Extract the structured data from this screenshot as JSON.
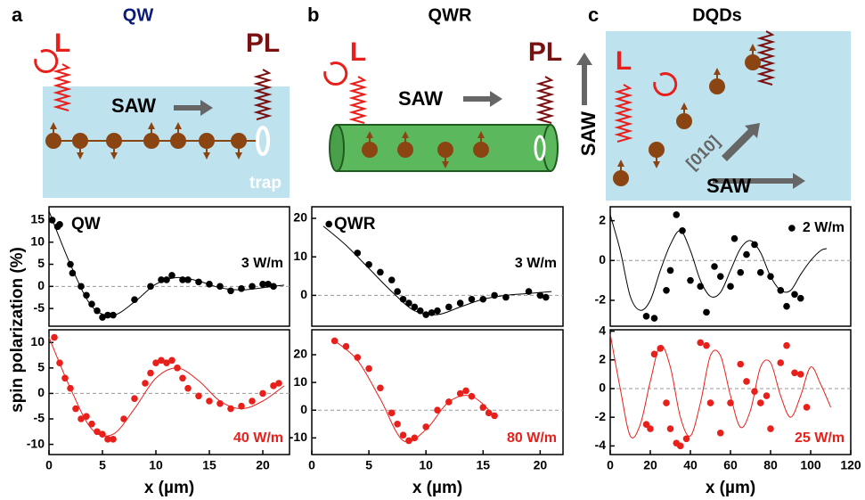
{
  "schematics": [
    {
      "letter": "a",
      "title": "QW",
      "texts": [
        "L",
        "PL",
        "SAW",
        "trap"
      ]
    },
    {
      "letter": "b",
      "title": "QWR",
      "texts": [
        "L",
        "PL",
        "SAW"
      ]
    },
    {
      "letter": "c",
      "title": "DQDs",
      "texts": [
        "L",
        "SAW",
        "[010]",
        "SAW"
      ]
    }
  ],
  "axis_label": "spin polarization (%)",
  "chart_data": [
    {
      "type": "scatter",
      "labels": [
        "QW",
        "3 W/m"
      ],
      "color": "#000000",
      "zero_line": true,
      "x": [
        0.3,
        0.8,
        1,
        2,
        2.2,
        3,
        3.5,
        4,
        4.5,
        5,
        5.5,
        6,
        8,
        9.5,
        10.5,
        11,
        11.5,
        12.5,
        13,
        14,
        15,
        16,
        17,
        18,
        19,
        20,
        20.5,
        21
      ],
      "values": [
        15,
        13.5,
        14,
        5,
        3,
        0,
        -2,
        -4,
        -5.5,
        -7,
        -6.5,
        -6.5,
        -3,
        0,
        1.5,
        1.5,
        2.5,
        1.5,
        1.5,
        1,
        0.5,
        0,
        -1,
        -0.5,
        0,
        0.5,
        0.5,
        0
      ],
      "fit": {
        "x": [
          0,
          2,
          4,
          6,
          8,
          10,
          12,
          14,
          16,
          18,
          20,
          22
        ],
        "values": [
          17,
          5,
          -4.5,
          -6.5,
          -3.5,
          0.5,
          2,
          1.2,
          -0.3,
          -0.8,
          -0.3,
          0.3
        ]
      },
      "xlim": [
        0,
        22.5
      ],
      "ylim": [
        -9,
        18
      ],
      "yticks": [
        -5,
        0,
        5,
        10,
        15
      ]
    },
    {
      "type": "scatter",
      "labels": [
        "40 W/m"
      ],
      "color": "#e8201c",
      "zero_line": true,
      "x": [
        0.5,
        1,
        1.5,
        2,
        2.5,
        3,
        3.5,
        4,
        4.5,
        5,
        5.5,
        6,
        7,
        8,
        9,
        9.5,
        10,
        10.5,
        11,
        11.5,
        12,
        12.5,
        13,
        14,
        15,
        16,
        17,
        18,
        19,
        20,
        21,
        21.5
      ],
      "values": [
        11,
        6,
        3,
        1,
        -3,
        -5,
        -4.5,
        -6,
        -7.5,
        -8,
        -9,
        -9,
        -5,
        -1,
        2,
        4,
        6,
        6.5,
        6,
        6.5,
        5,
        3,
        1,
        -0.5,
        -1.5,
        -2,
        -3,
        -2.5,
        -1.5,
        0,
        1.5,
        2
      ],
      "fit": {
        "x": [
          0,
          2,
          4,
          6,
          8,
          10,
          12,
          14,
          16,
          18,
          20,
          22
        ],
        "values": [
          11,
          1,
          -7,
          -8,
          -3,
          3,
          5,
          2.5,
          -1.5,
          -3,
          -1.5,
          1.5
        ]
      },
      "xlim": [
        0,
        22.5
      ],
      "ylim": [
        -12,
        12.5
      ],
      "yticks": [
        -10,
        -5,
        0,
        5,
        10
      ],
      "xticks": [
        0,
        5,
        10,
        15,
        20
      ],
      "xlabel": "x (µm)"
    },
    {
      "type": "scatter",
      "labels": [
        "QWR",
        "3 W/m"
      ],
      "color": "#000000",
      "zero_line": true,
      "x": [
        1.5,
        4,
        5,
        6,
        7,
        7.5,
        8,
        8.5,
        9,
        9.5,
        10,
        10.5,
        11,
        12,
        13,
        14,
        15,
        16,
        17,
        19,
        20,
        20.5
      ],
      "values": [
        18.5,
        11,
        8,
        6,
        4,
        1,
        -1,
        -2,
        -3,
        -4,
        -5,
        -4.5,
        -4,
        -3,
        -2,
        -1,
        -1,
        0,
        -0.5,
        1,
        0,
        -0.5
      ],
      "fit": {
        "x": [
          1,
          3,
          5,
          7,
          9,
          11,
          13,
          15,
          17,
          19,
          21
        ],
        "values": [
          18,
          13,
          7,
          1,
          -4,
          -5,
          -3,
          -1,
          0,
          0.5,
          1
        ]
      },
      "xlim": [
        0,
        22
      ],
      "ylim": [
        -8,
        23
      ],
      "yticks": [
        0,
        10,
        20
      ]
    },
    {
      "type": "scatter",
      "labels": [
        "80 W/m"
      ],
      "color": "#e8201c",
      "zero_line": true,
      "x": [
        2,
        3,
        4,
        5,
        6,
        7,
        7.5,
        8,
        8.5,
        9,
        10,
        11,
        12,
        13,
        13.5,
        14,
        15,
        15.5,
        16
      ],
      "values": [
        25,
        23,
        19,
        15,
        8,
        -1,
        -5,
        -9,
        -11,
        -10,
        -6,
        0,
        3,
        6,
        7,
        5,
        1,
        -1,
        -2
      ],
      "fit": {
        "x": [
          2,
          4,
          6,
          8,
          10,
          12,
          14,
          16
        ],
        "values": [
          25,
          18,
          4,
          -11,
          -7,
          3,
          5,
          -2
        ]
      },
      "xlim": [
        0,
        22
      ],
      "ylim": [
        -16,
        29
      ],
      "yticks": [
        -10,
        0,
        10,
        20
      ],
      "xticks": [
        0,
        5,
        10,
        15,
        20
      ],
      "xlabel": "x (µm)"
    },
    {
      "type": "scatter",
      "labels": [
        "2 W/m"
      ],
      "color": "#000000",
      "zero_line": true,
      "x": [
        18,
        22,
        28,
        30,
        33,
        36,
        40,
        45,
        48,
        52,
        55,
        60,
        62,
        65,
        68,
        72,
        75,
        80,
        85,
        88,
        92,
        95
      ],
      "values": [
        -2.8,
        -2.9,
        -1.5,
        -0.5,
        2.3,
        1.5,
        -1,
        -1.3,
        -2.6,
        -0.3,
        -0.8,
        -1.3,
        1.1,
        -0.6,
        0.3,
        0.8,
        -0.6,
        -0.8,
        -1.5,
        -2.3,
        -1.7,
        -1.9
      ],
      "fit": {
        "x": [
          0,
          5,
          10,
          15,
          20,
          25,
          30,
          35,
          40,
          45,
          50,
          55,
          60,
          65,
          70,
          75,
          80,
          85,
          90,
          95,
          100,
          105,
          108
        ],
        "values": [
          2.3,
          0.5,
          -1.8,
          -2.5,
          -2,
          -0.5,
          0.8,
          1.5,
          0.5,
          -1,
          -1.8,
          -1.6,
          -0.5,
          0.6,
          1,
          0.4,
          -0.8,
          -1.5,
          -1.5,
          -0.7,
          0,
          0.5,
          0.6
        ]
      },
      "xlim": [
        0,
        120
      ],
      "ylim": [
        -3.3,
        2.7
      ],
      "yticks": [
        -2,
        0,
        2
      ]
    },
    {
      "type": "scatter",
      "labels": [
        "25 W/m"
      ],
      "color": "#e8201c",
      "zero_line": true,
      "x": [
        18,
        20,
        22,
        25,
        28,
        30,
        33,
        35,
        38,
        45,
        48,
        50,
        55,
        60,
        65,
        68,
        72,
        75,
        78,
        80,
        85,
        88,
        92,
        95,
        98
      ],
      "values": [
        -2.5,
        -2.8,
        2.4,
        2.8,
        -1,
        -2.8,
        -3.8,
        -4,
        -3.5,
        3.2,
        3,
        -1,
        -3.1,
        -1,
        1.7,
        0.5,
        -0.2,
        -1,
        -0.5,
        -2.8,
        1.8,
        3,
        1.1,
        1,
        -1.3
      ],
      "fit": {
        "x": [
          0,
          5,
          10,
          15,
          20,
          25,
          30,
          35,
          40,
          45,
          50,
          55,
          60,
          65,
          70,
          75,
          80,
          85,
          90,
          95,
          100,
          105,
          110
        ],
        "values": [
          3.8,
          0,
          -3.3,
          -2.5,
          0.5,
          3,
          1.5,
          -2,
          -3.3,
          -1,
          2.3,
          2.3,
          -0.5,
          -2.7,
          -1.5,
          1.5,
          1.8,
          -0.5,
          -2,
          -0.5,
          1.5,
          0.3,
          -1.3
        ]
      },
      "xlim": [
        0,
        120
      ],
      "ylim": [
        -4.6,
        4.1
      ],
      "yticks": [
        -4,
        -2,
        0,
        2,
        4
      ],
      "xticks": [
        0,
        20,
        40,
        60,
        80,
        100,
        120
      ],
      "xlabel": "x (µm)"
    }
  ]
}
